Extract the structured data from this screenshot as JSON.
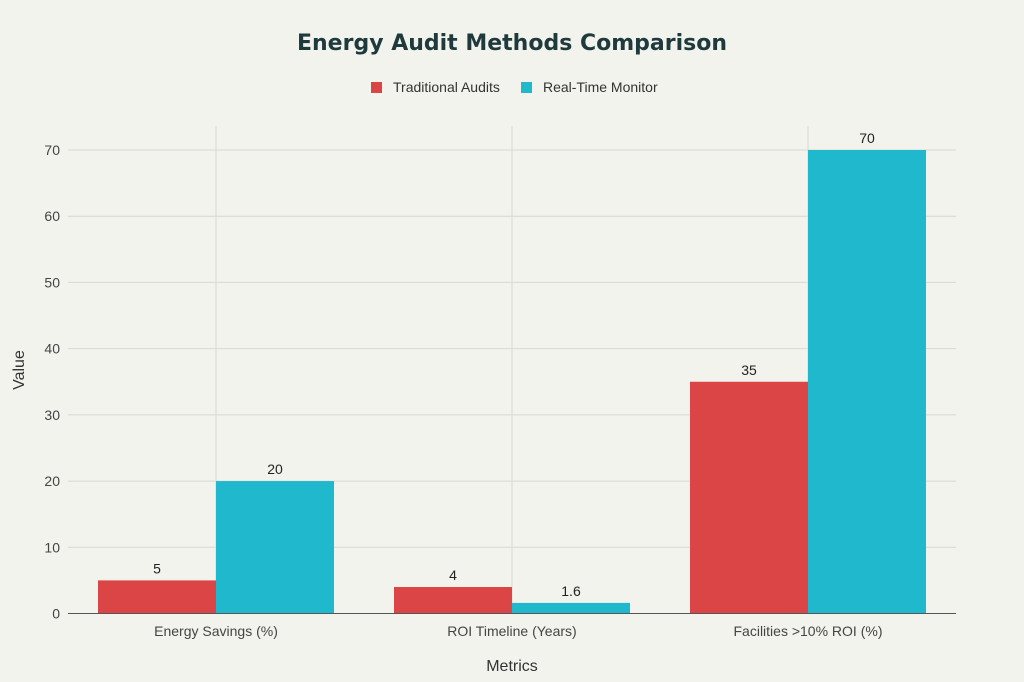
{
  "chart_data": {
    "type": "bar",
    "title": "Energy Audit Methods Comparison",
    "xlabel": "Metrics",
    "ylabel": "Value",
    "categories": [
      "Energy Savings (%)",
      "ROI Timeline (Years)",
      "Facilities >10% ROI (%)"
    ],
    "series": [
      {
        "name": "Traditional Audits",
        "color": "#db4545",
        "values": [
          5,
          4,
          35
        ],
        "labels": [
          "5",
          "4",
          "35"
        ]
      },
      {
        "name": "Real-Time Monitor",
        "color": "#1fb8cd",
        "values": [
          20,
          1.6,
          70
        ],
        "labels": [
          "20",
          "1.6",
          "70"
        ]
      }
    ],
    "ylim": [
      0,
      75
    ],
    "yticks": [
      0,
      10,
      20,
      30,
      40,
      50,
      60,
      70
    ],
    "ytick_labels": [
      "0",
      "10",
      "20",
      "30",
      "40",
      "50",
      "60",
      "70"
    ],
    "grid": true,
    "legend": "top-center"
  }
}
